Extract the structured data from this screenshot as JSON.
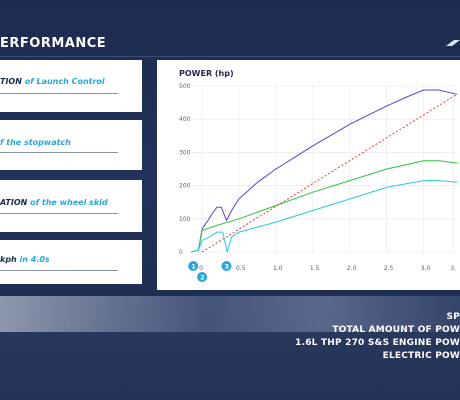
{
  "header": {
    "title": "ERFORMANCE"
  },
  "cards": [
    {
      "prefix": "TION",
      "suffix": " of Launch Control"
    },
    {
      "prefix": "",
      "suffix": "f the stopwatch"
    },
    {
      "prefix": "ATION",
      "suffix": " of the wheel skid"
    },
    {
      "prefix": " kph",
      "suffix": " in 4.0s"
    }
  ],
  "chart_data": {
    "type": "line",
    "title": "POWER (hp)",
    "xlabel": "",
    "ylabel": "",
    "x_ticks": [
      "0",
      "0.5",
      "1.0",
      "1.5",
      "2.0",
      "2.5",
      "3.0",
      "3."
    ],
    "y_ticks": [
      "0",
      "100",
      "200",
      "300",
      "400",
      "500"
    ],
    "xlim": [
      -0.15,
      3.45
    ],
    "ylim": [
      0,
      500
    ],
    "grid": true,
    "markers": [
      {
        "label": "1",
        "x": -0.12
      },
      {
        "label": "2",
        "x": 0.0
      },
      {
        "label": "3",
        "x": 0.33
      }
    ],
    "series": [
      {
        "color": "#5b43d6",
        "style": "solid",
        "points": [
          [
            -0.15,
            0
          ],
          [
            -0.05,
            5
          ],
          [
            0.0,
            70
          ],
          [
            0.08,
            95
          ],
          [
            0.15,
            120
          ],
          [
            0.2,
            135
          ],
          [
            0.26,
            135
          ],
          [
            0.33,
            95
          ],
          [
            0.4,
            125
          ],
          [
            0.5,
            160
          ],
          [
            0.75,
            210
          ],
          [
            1.0,
            250
          ],
          [
            1.5,
            320
          ],
          [
            2.0,
            385
          ],
          [
            2.5,
            440
          ],
          [
            2.8,
            470
          ],
          [
            3.0,
            488
          ],
          [
            3.2,
            488
          ],
          [
            3.45,
            475
          ]
        ]
      },
      {
        "color": "#2ec43c",
        "style": "solid",
        "points": [
          [
            -0.15,
            0
          ],
          [
            -0.05,
            5
          ],
          [
            0.0,
            65
          ],
          [
            0.2,
            80
          ],
          [
            0.5,
            100
          ],
          [
            1.0,
            140
          ],
          [
            1.5,
            180
          ],
          [
            2.0,
            215
          ],
          [
            2.5,
            250
          ],
          [
            3.0,
            275
          ],
          [
            3.2,
            275
          ],
          [
            3.45,
            268
          ]
        ]
      },
      {
        "color": "#2ec6e6",
        "style": "solid",
        "points": [
          [
            -0.15,
            0
          ],
          [
            -0.05,
            5
          ],
          [
            0.0,
            35
          ],
          [
            0.1,
            45
          ],
          [
            0.2,
            60
          ],
          [
            0.28,
            60
          ],
          [
            0.34,
            0
          ],
          [
            0.4,
            45
          ],
          [
            0.5,
            60
          ],
          [
            1.0,
            90
          ],
          [
            1.5,
            125
          ],
          [
            2.0,
            160
          ],
          [
            2.5,
            195
          ],
          [
            3.0,
            215
          ],
          [
            3.2,
            215
          ],
          [
            3.45,
            210
          ]
        ]
      },
      {
        "color": "#e0403a",
        "style": "dashed",
        "points": [
          [
            0.0,
            0
          ],
          [
            3.45,
            475
          ]
        ]
      }
    ]
  },
  "specs": [
    "SP",
    "TOTAL AMOUNT OF POW",
    "1.6L THP 270 S&S ENGINE POW",
    "ELECTRIC POW"
  ],
  "colors": {
    "background": "#1d2b4f",
    "accent": "#2aa6d8",
    "card": "#ffffff"
  }
}
